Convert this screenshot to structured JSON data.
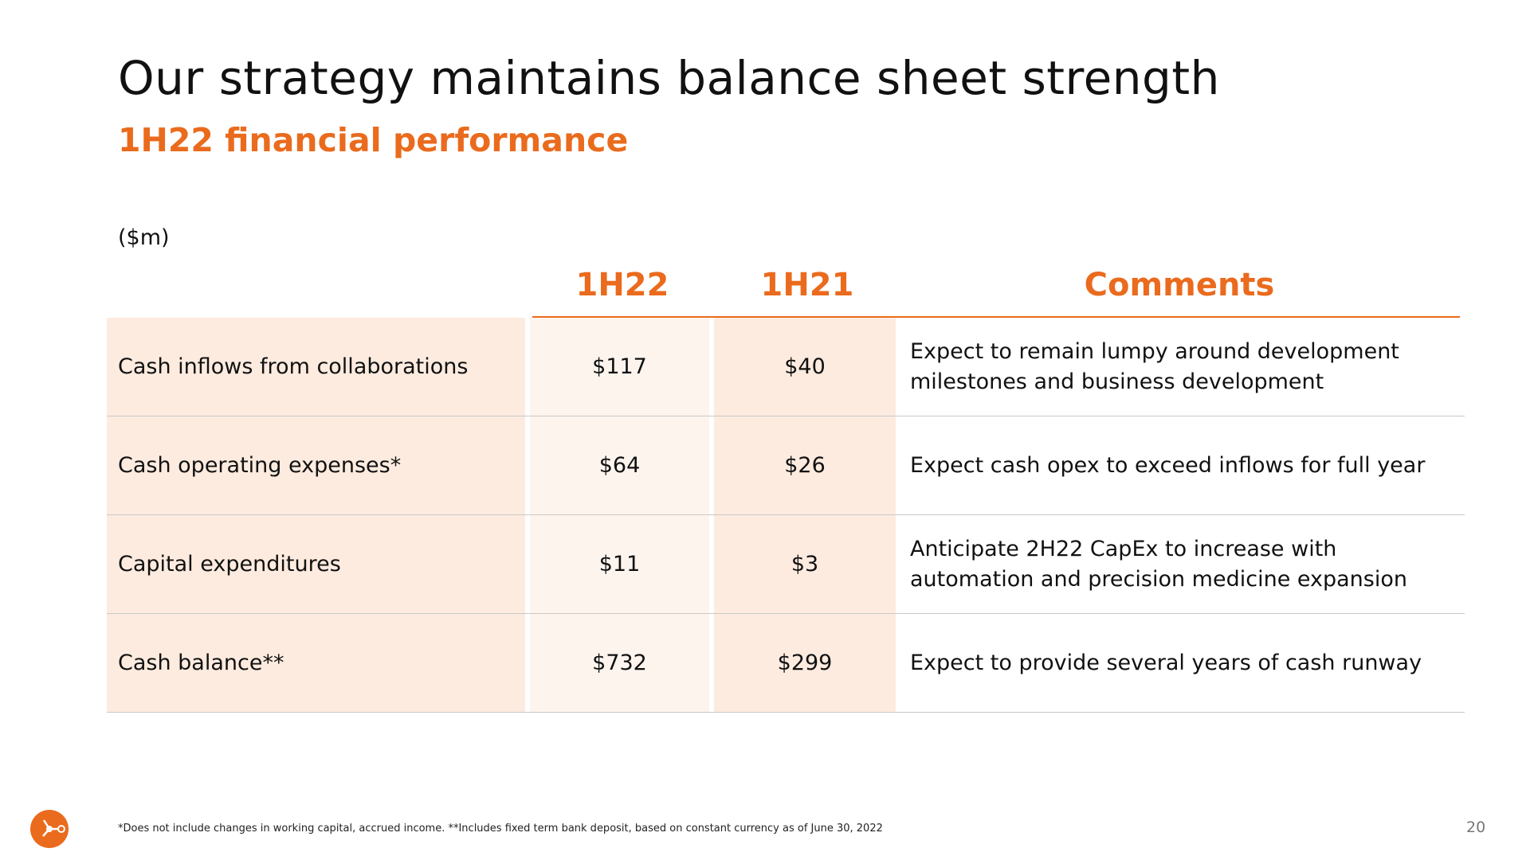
{
  "slide": {
    "title": "Our strategy maintains balance sheet strength",
    "subtitle": "1H22 financial performance",
    "unit": "($m)",
    "page_number": "20",
    "footnote": "*Does not include changes in working capital, accrued income. **Includes fixed term bank deposit, based on constant currency as of June 30, 2022"
  },
  "table": {
    "headers": {
      "col1": "1H22",
      "col2": "1H21",
      "col3": "Comments"
    },
    "rows": [
      {
        "label": "Cash inflows from collaborations",
        "v1": "$117",
        "v2": "$40",
        "comment": "Expect to remain lumpy around development milestones and business development"
      },
      {
        "label": "Cash operating expenses*",
        "v1": "$64",
        "v2": "$26",
        "comment": "Expect cash opex to exceed inflows for full year"
      },
      {
        "label": "Capital expenditures",
        "v1": "$11",
        "v2": "$3",
        "comment": "Anticipate 2H22 CapEx to increase with automation and precision medicine expansion"
      },
      {
        "label": "Cash balance**",
        "v1": "$732",
        "v2": "$299",
        "comment": "Expect to provide several years of cash runway"
      }
    ]
  },
  "colors": {
    "accent": "#ea6b1d",
    "row_label_bg": "#fdebdf",
    "col_1h22_bg": "#fdf4ee",
    "col_1h21_bg": "#fdebdf"
  },
  "icons": {
    "logo": "molecule-logo-icon"
  }
}
